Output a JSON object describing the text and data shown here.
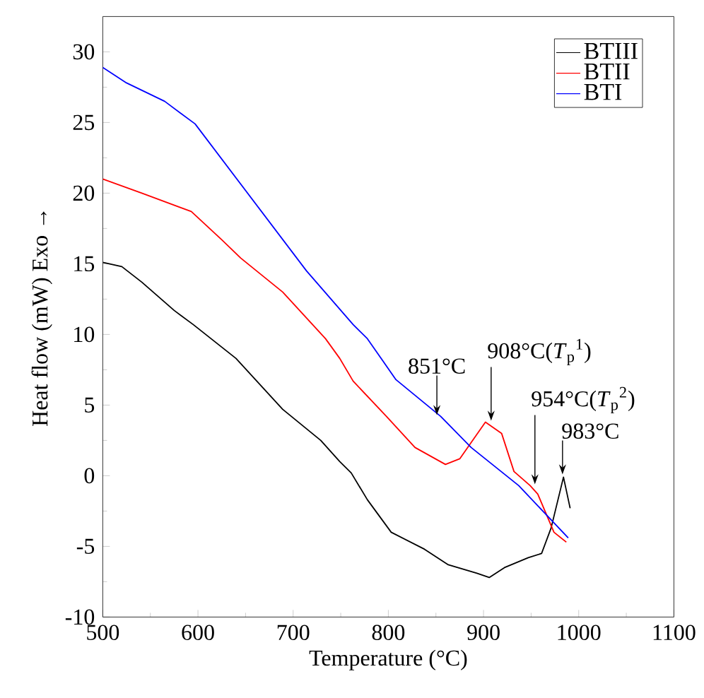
{
  "chart_data": {
    "type": "line",
    "xlabel": "Temperature (°C)",
    "ylabel": "Heat flow (mW) Exo →",
    "xlim": [
      500,
      1100
    ],
    "ylim": [
      -10,
      32.5
    ],
    "xticks": [
      500,
      600,
      700,
      800,
      900,
      1000,
      1100
    ],
    "yticks": [
      -10,
      -5,
      0,
      5,
      10,
      15,
      20,
      25,
      30
    ],
    "legend": "top right",
    "series": [
      {
        "name": "BTIII",
        "color": "#000000",
        "x": [
          500,
          520,
          541,
          575,
          595,
          640,
          689,
          729,
          749,
          761,
          778,
          803,
          838,
          863,
          893,
          906,
          922,
          947,
          961,
          971,
          984,
          991
        ],
        "values": [
          15.1,
          14.8,
          13.7,
          11.7,
          10.7,
          8.3,
          4.7,
          2.5,
          1.0,
          0.2,
          -1.7,
          -4.0,
          -5.2,
          -6.3,
          -6.9,
          -7.2,
          -6.5,
          -5.8,
          -5.5,
          -3.7,
          -0.1,
          -2.3
        ]
      },
      {
        "name": "BTII",
        "color": "#ff0000",
        "x": [
          500,
          541,
          593,
          625,
          645,
          689,
          734,
          749,
          763,
          798,
          828,
          860,
          875,
          902,
          919,
          932,
          949,
          957,
          974,
          987
        ],
        "values": [
          21.0,
          20.0,
          18.7,
          16.7,
          15.4,
          13.0,
          9.7,
          8.3,
          6.7,
          4.2,
          2.0,
          0.8,
          1.2,
          3.8,
          3.0,
          0.3,
          -0.7,
          -1.3,
          -4.0,
          -4.7
        ]
      },
      {
        "name": "BTI",
        "color": "#0000ff",
        "x": [
          500,
          525,
          565,
          597,
          714,
          763,
          778,
          808,
          855,
          887,
          937,
          989
        ],
        "values": [
          28.9,
          27.8,
          26.5,
          24.9,
          14.5,
          10.7,
          9.7,
          6.8,
          4.2,
          2.0,
          -0.7,
          -4.4
        ]
      }
    ],
    "annotations": [
      {
        "text": "851°C",
        "x": 851,
        "y": 4.2
      },
      {
        "text": "908°C(*T*$_{p}$$^{1}$)",
        "x": 908,
        "y": 3.8
      },
      {
        "text": "954°C(*T*$_{p}$$^{2}$)",
        "x": 954,
        "y": -0.7
      },
      {
        "text": "983°C",
        "x": 983,
        "y": 0
      }
    ]
  }
}
